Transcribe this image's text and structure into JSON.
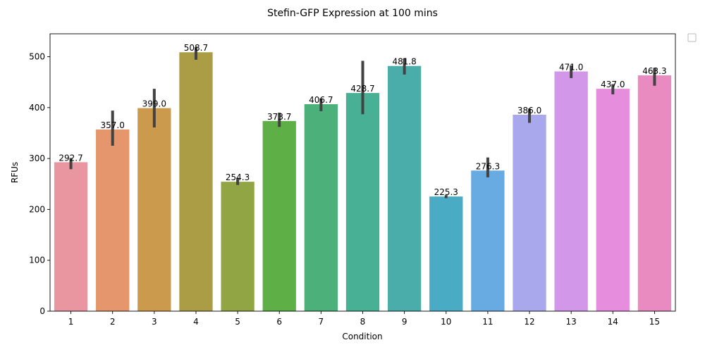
{
  "chart_data": {
    "type": "bar",
    "title": "Stefin-GFP Expression at 100 mins",
    "xlabel": "Condition",
    "ylabel": "RFUs",
    "ylim": [
      0,
      545
    ],
    "yticks": [
      0,
      100,
      200,
      300,
      400,
      500
    ],
    "grid": false,
    "legend": "outside top-right, empty",
    "categories": [
      "1",
      "2",
      "3",
      "4",
      "5",
      "6",
      "7",
      "8",
      "9",
      "10",
      "11",
      "12",
      "13",
      "14",
      "15"
    ],
    "values": [
      292.7,
      357.0,
      399.0,
      508.7,
      254.3,
      373.7,
      406.7,
      428.7,
      481.8,
      225.3,
      276.3,
      386.0,
      471.0,
      437.0,
      463.3
    ],
    "value_labels": [
      "292.7",
      "357.0",
      "399.0",
      "508.7",
      "254.3",
      "373.7",
      "406.7",
      "428.7",
      "481.8",
      "225.3",
      "276.3",
      "386.0",
      "471.0",
      "437.0",
      "463.3"
    ],
    "error_low": [
      279,
      325,
      361,
      494,
      248,
      362,
      393,
      387,
      465,
      222,
      263,
      370,
      458,
      426,
      443
    ],
    "error_high": [
      301,
      394,
      437,
      519,
      262,
      390,
      418,
      492,
      497,
      228,
      302,
      398,
      483,
      446,
      478
    ],
    "colors": [
      "#ea96a1",
      "#e5966c",
      "#cc9a4d",
      "#ab9d45",
      "#91a544",
      "#5faf47",
      "#4bb07a",
      "#48b094",
      "#4aadaa",
      "#4aacc4",
      "#68abe3",
      "#aaa8ed",
      "#d297e8",
      "#e78dde",
      "#e98bc0"
    ],
    "error_color": "#424242"
  }
}
